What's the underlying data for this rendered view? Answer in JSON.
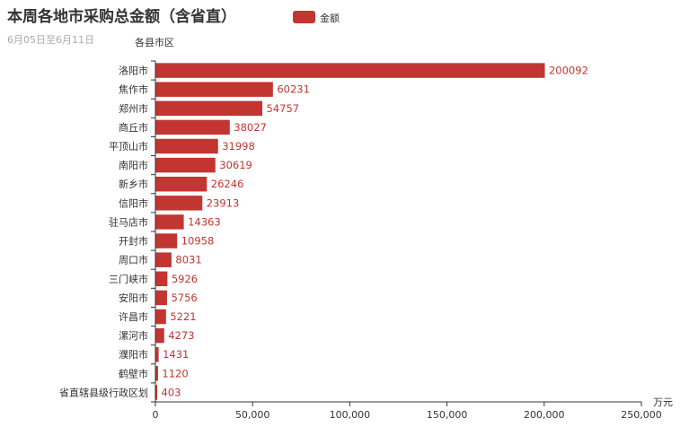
{
  "chart_data": {
    "type": "bar",
    "orientation": "horizontal",
    "title": "本周各地市采购总金额（含省直）",
    "subtitle": "6月05日至6月11日",
    "ylabel": "各县市区",
    "xlabel": "万元",
    "legend": {
      "label": "金额",
      "placement": "top-center"
    },
    "color": "#c23531",
    "xlim": [
      0,
      250000
    ],
    "xticks": [
      0,
      50000,
      100000,
      150000,
      200000,
      250000
    ],
    "xtick_labels": [
      "0",
      "50,000",
      "100,000",
      "150,000",
      "200,000",
      "250,000"
    ],
    "categories": [
      "洛阳市",
      "焦作市",
      "郑州市",
      "商丘市",
      "平顶山市",
      "南阳市",
      "新乡市",
      "信阳市",
      "驻马店市",
      "开封市",
      "周口市",
      "三门峡市",
      "安阳市",
      "许昌市",
      "漯河市",
      "濮阳市",
      "鹤壁市",
      "省直辖县级行政区划"
    ],
    "values": [
      200092,
      60231,
      54757,
      38027,
      31998,
      30619,
      26246,
      23913,
      14363,
      10958,
      8031,
      5926,
      5756,
      5221,
      4273,
      1431,
      1120,
      403
    ],
    "value_labels": [
      "200092",
      "60231",
      "54757",
      "38027",
      "31998",
      "30619",
      "26246",
      "23913",
      "14363",
      "10958",
      "8031",
      "5926",
      "5756",
      "5221",
      "4273",
      "1431",
      "1120",
      "403"
    ],
    "grid": false
  }
}
